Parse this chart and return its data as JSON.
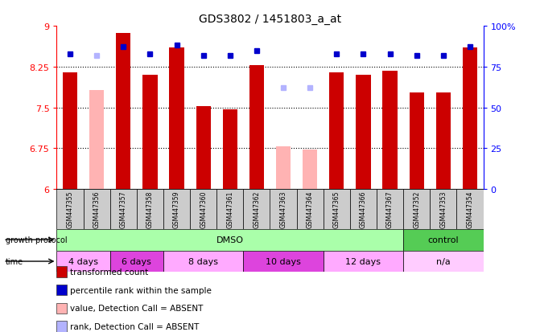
{
  "title": "GDS3802 / 1451803_a_at",
  "samples": [
    "GSM447355",
    "GSM447356",
    "GSM447357",
    "GSM447358",
    "GSM447359",
    "GSM447360",
    "GSM447361",
    "GSM447362",
    "GSM447363",
    "GSM447364",
    "GSM447365",
    "GSM447366",
    "GSM447367",
    "GSM447352",
    "GSM447353",
    "GSM447354"
  ],
  "bar_values": [
    8.15,
    0,
    8.87,
    8.1,
    8.6,
    7.52,
    7.47,
    8.28,
    0,
    0,
    8.15,
    8.1,
    8.18,
    7.78,
    7.78,
    8.6
  ],
  "bar_absent_values": [
    0,
    7.82,
    0,
    0,
    0,
    0,
    0,
    0,
    6.78,
    6.72,
    0,
    0,
    0,
    0,
    0,
    0
  ],
  "rank_values": [
    83,
    0,
    87,
    83,
    88,
    82,
    82,
    85,
    0,
    0,
    83,
    83,
    83,
    82,
    82,
    87
  ],
  "rank_absent_values": [
    0,
    82,
    0,
    0,
    0,
    0,
    0,
    0,
    62,
    62,
    0,
    0,
    0,
    0,
    0,
    0
  ],
  "ylim_left": [
    6,
    9
  ],
  "ylim_right": [
    0,
    100
  ],
  "yticks_left": [
    6,
    6.75,
    7.5,
    8.25,
    9
  ],
  "yticks_right": [
    0,
    25,
    50,
    75,
    100
  ],
  "grid_lines": [
    6.75,
    7.5,
    8.25
  ],
  "bar_color": "#cc0000",
  "bar_absent_color": "#ffb3b3",
  "rank_color": "#0000cc",
  "rank_absent_color": "#b3b3ff",
  "bg_color": "#ffffff",
  "protocol_groups": [
    {
      "label": "DMSO",
      "start": 0,
      "end": 13,
      "color": "#aaffaa"
    },
    {
      "label": "control",
      "start": 13,
      "end": 16,
      "color": "#55cc55"
    }
  ],
  "time_groups": [
    {
      "label": "4 days",
      "start": 0,
      "end": 2,
      "color": "#ffaaff"
    },
    {
      "label": "6 days",
      "start": 2,
      "end": 4,
      "color": "#dd44dd"
    },
    {
      "label": "8 days",
      "start": 4,
      "end": 7,
      "color": "#ffaaff"
    },
    {
      "label": "10 days",
      "start": 7,
      "end": 10,
      "color": "#dd44dd"
    },
    {
      "label": "12 days",
      "start": 10,
      "end": 13,
      "color": "#ffaaff"
    },
    {
      "label": "n/a",
      "start": 13,
      "end": 16,
      "color": "#ffccff"
    }
  ],
  "bar_width": 0.55,
  "legend_items": [
    {
      "label": "transformed count",
      "color": "#cc0000"
    },
    {
      "label": "percentile rank within the sample",
      "color": "#0000cc"
    },
    {
      "label": "value, Detection Call = ABSENT",
      "color": "#ffb3b3"
    },
    {
      "label": "rank, Detection Call = ABSENT",
      "color": "#b3b3ff"
    }
  ]
}
